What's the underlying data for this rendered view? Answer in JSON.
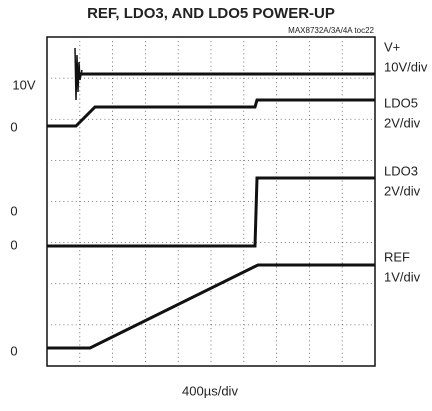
{
  "header": {
    "title": "REF, LDO3, AND LDO5 POWER-UP",
    "figure_id": "MAX8732A/3A/4A toc22"
  },
  "channels": [
    {
      "name": "V+",
      "scale": "10V/div"
    },
    {
      "name": "LDO5",
      "scale": "2V/div"
    },
    {
      "name": "LDO3",
      "scale": "2V/div"
    },
    {
      "name": "REF",
      "scale": "1V/div"
    }
  ],
  "left_markers": [
    "10V",
    "0",
    "0",
    "0",
    "0"
  ],
  "time_scale": "400µs/div"
}
